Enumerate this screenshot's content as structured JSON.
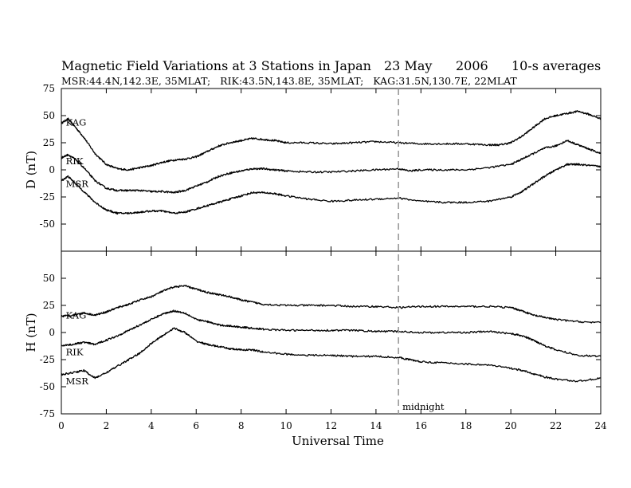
{
  "header": {
    "title": "Magnetic Field Variations at 3 Stations in Japan",
    "date": "23 May",
    "year": "2006",
    "averaging": "10-s averages",
    "stations_line": "MSR:44.4N,142.3E, 35MLAT;   RIK:43.5N,143.8E, 35MLAT;   KAG:31.5N,130.7E, 22MLAT"
  },
  "chart_data": {
    "type": "line",
    "xlabel": "Universal Time",
    "xlim": [
      0,
      24
    ],
    "xticks": [
      0,
      2,
      4,
      6,
      8,
      10,
      12,
      14,
      16,
      18,
      20,
      22,
      24
    ],
    "marker": {
      "x": 15,
      "label": "midnight",
      "color": "#999999"
    },
    "panels": [
      {
        "id": "D",
        "ylabel": "D (nT)",
        "ylim": [
          -75,
          75
        ],
        "yticks": [
          75,
          50,
          25,
          0,
          -25,
          -50
        ],
        "series": [
          {
            "name": "KAG",
            "points": [
              [
                0,
                43
              ],
              [
                0.3,
                47
              ],
              [
                0.6,
                40
              ],
              [
                1,
                30
              ],
              [
                1.5,
                15
              ],
              [
                2,
                5
              ],
              [
                2.5,
                1
              ],
              [
                3,
                0
              ],
              [
                3.5,
                2
              ],
              [
                4,
                4
              ],
              [
                4.5,
                7
              ],
              [
                5,
                9
              ],
              [
                5.5,
                10
              ],
              [
                6,
                12
              ],
              [
                6.5,
                17
              ],
              [
                7,
                22
              ],
              [
                7.5,
                25
              ],
              [
                8,
                27
              ],
              [
                8.5,
                29
              ],
              [
                9,
                28
              ],
              [
                9.5,
                27
              ],
              [
                10,
                25
              ],
              [
                11,
                25
              ],
              [
                12,
                24
              ],
              [
                13,
                25
              ],
              [
                14,
                26
              ],
              [
                15,
                25
              ],
              [
                16,
                24
              ],
              [
                17,
                24
              ],
              [
                18,
                24
              ],
              [
                19,
                23
              ],
              [
                19.5,
                23
              ],
              [
                20,
                25
              ],
              [
                20.5,
                31
              ],
              [
                21,
                39
              ],
              [
                21.5,
                47
              ],
              [
                22,
                50
              ],
              [
                22.5,
                52
              ],
              [
                23,
                54
              ],
              [
                23.5,
                51
              ],
              [
                24,
                47
              ]
            ]
          },
          {
            "name": "RIK",
            "points": [
              [
                0,
                11
              ],
              [
                0.3,
                14
              ],
              [
                0.6,
                10
              ],
              [
                1,
                2
              ],
              [
                1.5,
                -10
              ],
              [
                2,
                -17
              ],
              [
                2.5,
                -19
              ],
              [
                3,
                -19
              ],
              [
                3.5,
                -19
              ],
              [
                4,
                -20
              ],
              [
                4.5,
                -20
              ],
              [
                5,
                -21
              ],
              [
                5.5,
                -19
              ],
              [
                6,
                -15
              ],
              [
                6.5,
                -11
              ],
              [
                7,
                -6
              ],
              [
                7.5,
                -3
              ],
              [
                8,
                -1
              ],
              [
                8.5,
                1
              ],
              [
                9,
                1
              ],
              [
                9.5,
                0
              ],
              [
                10,
                -1
              ],
              [
                11,
                -2
              ],
              [
                12,
                -2
              ],
              [
                13,
                -1
              ],
              [
                14,
                0
              ],
              [
                15,
                1
              ],
              [
                15.5,
                -1
              ],
              [
                16,
                0
              ],
              [
                17,
                0
              ],
              [
                18,
                0
              ],
              [
                19,
                2
              ],
              [
                20,
                5
              ],
              [
                20.5,
                10
              ],
              [
                21,
                15
              ],
              [
                21.5,
                20
              ],
              [
                22,
                22
              ],
              [
                22.5,
                27
              ],
              [
                23,
                23
              ],
              [
                23.5,
                19
              ],
              [
                24,
                15
              ]
            ]
          },
          {
            "name": "MSR",
            "points": [
              [
                0,
                -10
              ],
              [
                0.3,
                -6
              ],
              [
                0.6,
                -12
              ],
              [
                1,
                -20
              ],
              [
                1.5,
                -30
              ],
              [
                2,
                -37
              ],
              [
                2.5,
                -40
              ],
              [
                3,
                -40
              ],
              [
                3.5,
                -39
              ],
              [
                4,
                -38
              ],
              [
                4.5,
                -38
              ],
              [
                5,
                -40
              ],
              [
                5.5,
                -39
              ],
              [
                6,
                -36
              ],
              [
                6.5,
                -33
              ],
              [
                7,
                -30
              ],
              [
                7.5,
                -27
              ],
              [
                8,
                -24
              ],
              [
                8.5,
                -21
              ],
              [
                9,
                -21
              ],
              [
                9.5,
                -22
              ],
              [
                10,
                -24
              ],
              [
                11,
                -27
              ],
              [
                12,
                -29
              ],
              [
                13,
                -28
              ],
              [
                14,
                -27
              ],
              [
                15,
                -26
              ],
              [
                16,
                -29
              ],
              [
                17,
                -30
              ],
              [
                18,
                -30
              ],
              [
                19,
                -29
              ],
              [
                20,
                -25
              ],
              [
                20.5,
                -20
              ],
              [
                21,
                -13
              ],
              [
                21.5,
                -6
              ],
              [
                22,
                0
              ],
              [
                22.5,
                5
              ],
              [
                23,
                5
              ],
              [
                23.5,
                4
              ],
              [
                24,
                3
              ]
            ]
          }
        ]
      },
      {
        "id": "H",
        "ylabel": "H (nT)",
        "ylim": [
          -75,
          75
        ],
        "yticks": [
          50,
          25,
          0,
          -25,
          -50,
          -75
        ],
        "series": [
          {
            "name": "KAG",
            "points": [
              [
                0,
                15
              ],
              [
                0.5,
                16
              ],
              [
                1,
                18
              ],
              [
                1.5,
                16
              ],
              [
                2,
                19
              ],
              [
                2.5,
                23
              ],
              [
                3,
                26
              ],
              [
                3.5,
                30
              ],
              [
                4,
                33
              ],
              [
                4.5,
                38
              ],
              [
                5,
                42
              ],
              [
                5.5,
                43
              ],
              [
                6,
                40
              ],
              [
                6.5,
                37
              ],
              [
                7,
                35
              ],
              [
                7.5,
                33
              ],
              [
                8,
                30
              ],
              [
                8.5,
                28
              ],
              [
                9,
                26
              ],
              [
                10,
                25
              ],
              [
                11,
                25
              ],
              [
                12,
                25
              ],
              [
                13,
                24
              ],
              [
                14,
                24
              ],
              [
                15,
                23
              ],
              [
                16,
                24
              ],
              [
                17,
                24
              ],
              [
                18,
                24
              ],
              [
                19,
                24
              ],
              [
                20,
                23
              ],
              [
                20.5,
                20
              ],
              [
                21,
                16
              ],
              [
                21.5,
                14
              ],
              [
                22,
                12
              ],
              [
                23,
                10
              ],
              [
                24,
                9
              ]
            ]
          },
          {
            "name": "RIK",
            "points": [
              [
                0,
                -12
              ],
              [
                0.5,
                -11
              ],
              [
                1,
                -9
              ],
              [
                1.5,
                -11
              ],
              [
                2,
                -7
              ],
              [
                2.5,
                -3
              ],
              [
                3,
                2
              ],
              [
                3.5,
                7
              ],
              [
                4,
                12
              ],
              [
                4.5,
                17
              ],
              [
                5,
                20
              ],
              [
                5.5,
                18
              ],
              [
                6,
                12
              ],
              [
                6.5,
                10
              ],
              [
                7,
                7
              ],
              [
                7.5,
                6
              ],
              [
                8,
                5
              ],
              [
                8.5,
                4
              ],
              [
                9,
                3
              ],
              [
                10,
                2
              ],
              [
                11,
                2
              ],
              [
                12,
                2
              ],
              [
                13,
                2
              ],
              [
                14,
                1
              ],
              [
                15,
                1
              ],
              [
                16,
                0
              ],
              [
                17,
                0
              ],
              [
                18,
                0
              ],
              [
                19,
                1
              ],
              [
                20,
                -1
              ],
              [
                20.5,
                -3
              ],
              [
                21,
                -7
              ],
              [
                21.5,
                -12
              ],
              [
                22,
                -16
              ],
              [
                23,
                -21
              ],
              [
                24,
                -22
              ]
            ]
          },
          {
            "name": "MSR",
            "points": [
              [
                0,
                -39
              ],
              [
                0.5,
                -37
              ],
              [
                1,
                -35
              ],
              [
                1.5,
                -42
              ],
              [
                2,
                -37
              ],
              [
                2.5,
                -31
              ],
              [
                3,
                -25
              ],
              [
                3.5,
                -19
              ],
              [
                4,
                -10
              ],
              [
                4.5,
                -3
              ],
              [
                5,
                4
              ],
              [
                5.5,
                0
              ],
              [
                6,
                -8
              ],
              [
                6.5,
                -11
              ],
              [
                7,
                -13
              ],
              [
                7.5,
                -15
              ],
              [
                8,
                -16
              ],
              [
                8.5,
                -16
              ],
              [
                9,
                -18
              ],
              [
                10,
                -20
              ],
              [
                11,
                -21
              ],
              [
                12,
                -21
              ],
              [
                13,
                -22
              ],
              [
                14,
                -22
              ],
              [
                15,
                -23
              ],
              [
                15.5,
                -25
              ],
              [
                16,
                -27
              ],
              [
                17,
                -28
              ],
              [
                18,
                -29
              ],
              [
                19,
                -30
              ],
              [
                20,
                -33
              ],
              [
                20.5,
                -35
              ],
              [
                21,
                -38
              ],
              [
                21.5,
                -41
              ],
              [
                22,
                -43
              ],
              [
                23,
                -45
              ],
              [
                24,
                -42
              ]
            ]
          }
        ]
      }
    ]
  }
}
